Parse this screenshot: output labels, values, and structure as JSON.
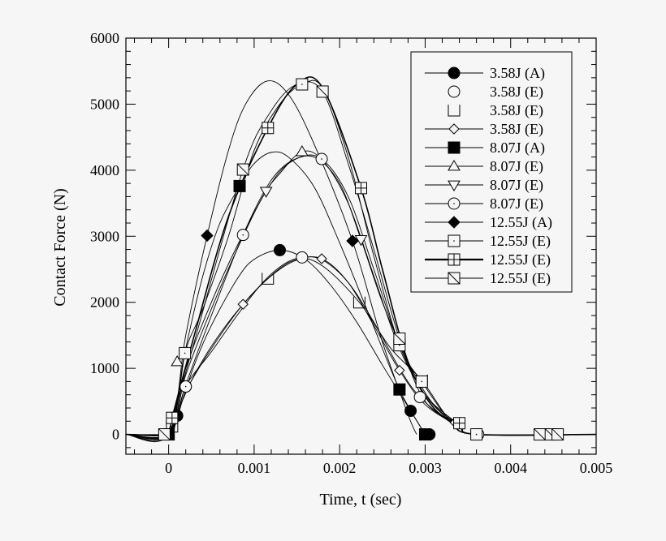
{
  "chart_data": {
    "type": "line",
    "title": "",
    "xlabel": "Time, t (sec)",
    "ylabel": "Contact Force (N)",
    "xlim": [
      -0.0005,
      0.005
    ],
    "ylim": [
      -300,
      6000
    ],
    "xticks": [
      0,
      0.001,
      0.002,
      0.003,
      0.004,
      0.005
    ],
    "xtick_labels": [
      "0",
      "0.001",
      "0.002",
      "0.003",
      "0.004",
      "0.005"
    ],
    "yticks": [
      0,
      1000,
      2000,
      3000,
      4000,
      5000,
      6000
    ],
    "ytick_labels": [
      "0",
      "1000",
      "2000",
      "3000",
      "4000",
      "5000",
      "6000"
    ],
    "grid": false,
    "legend_placement": "top-right",
    "series": [
      {
        "name": "3.58J (A)",
        "marker": "filled-circle",
        "legend_line": true,
        "line_weight": "normal",
        "points": [
          [
            -0.0005,
            0
          ],
          [
            0,
            0
          ],
          [
            0.0001,
            283
          ],
          [
            0.0003,
            1050
          ],
          [
            0.0005,
            1650
          ],
          [
            0.0008,
            2350
          ],
          [
            0.001,
            2650
          ],
          [
            0.0013,
            2790
          ],
          [
            0.0016,
            2650
          ],
          [
            0.0019,
            2250
          ],
          [
            0.0022,
            1700
          ],
          [
            0.0025,
            1050
          ],
          [
            0.00283,
            357
          ],
          [
            0.003,
            0
          ]
        ],
        "markers": [
          [
            0.0001,
            283
          ],
          [
            0.0013,
            2790
          ],
          [
            0.00283,
            357
          ],
          [
            0.003,
            0
          ],
          [
            0.00305,
            0
          ]
        ]
      },
      {
        "name": "3.58J (E)",
        "marker": "open-circle",
        "legend_line": false,
        "line_weight": "normal",
        "points": [
          [
            -0.0005,
            0
          ],
          [
            0,
            0
          ],
          [
            0.0002,
            725
          ],
          [
            0.0005,
            1250
          ],
          [
            0.0008,
            1800
          ],
          [
            0.0011,
            2300
          ],
          [
            0.00135,
            2580
          ],
          [
            0.00156,
            2680
          ],
          [
            0.0018,
            2640
          ],
          [
            0.0021,
            2300
          ],
          [
            0.0024,
            1700
          ],
          [
            0.0027,
            1000
          ],
          [
            0.00294,
            565
          ],
          [
            0.0033,
            180
          ],
          [
            0.0036,
            0
          ],
          [
            0.005,
            0
          ]
        ],
        "markers": [
          [
            0.0002,
            725
          ],
          [
            0.00156,
            2680
          ],
          [
            0.00294,
            565
          ],
          [
            0.00362,
            0
          ]
        ]
      },
      {
        "name": "3.58J (E)",
        "marker": "open-bracket",
        "legend_line": false,
        "line_weight": "normal",
        "points": [
          [
            -0.0005,
            0
          ],
          [
            0,
            0
          ],
          [
            4e-05,
            120
          ],
          [
            0.0003,
            900
          ],
          [
            0.0007,
            1700
          ],
          [
            0.00116,
            2360
          ],
          [
            0.0015,
            2650
          ],
          [
            0.0018,
            2550
          ],
          [
            0.00223,
            2000
          ],
          [
            0.0026,
            1300
          ],
          [
            0.00296,
            820
          ],
          [
            0.0033,
            200
          ],
          [
            0.0036,
            0
          ],
          [
            0.005,
            0
          ]
        ],
        "markers": [
          [
            4e-05,
            120
          ],
          [
            0.00116,
            2360
          ],
          [
            0.00223,
            2000
          ],
          [
            0.00296,
            820
          ]
        ]
      },
      {
        "name": "3.58J (E)",
        "marker": "open-diamond",
        "legend_line": true,
        "line_weight": "normal",
        "points": [
          [
            -0.0005,
            0
          ],
          [
            0,
            0
          ],
          [
            0.0002,
            650
          ],
          [
            0.0005,
            1300
          ],
          [
            0.00087,
            1970
          ],
          [
            0.0012,
            2400
          ],
          [
            0.0015,
            2640
          ],
          [
            0.00179,
            2660
          ],
          [
            0.0021,
            2300
          ],
          [
            0.0024,
            1650
          ],
          [
            0.0027,
            970
          ],
          [
            0.003,
            450
          ],
          [
            0.0034,
            120
          ],
          [
            0.0036,
            0
          ],
          [
            0.005,
            0
          ]
        ],
        "markers": [
          [
            0.00087,
            1970
          ],
          [
            0.00179,
            2660
          ],
          [
            0.0027,
            970
          ],
          [
            0.00335,
            180
          ]
        ]
      },
      {
        "name": "8.07J (A)",
        "marker": "filled-square",
        "legend_line": true,
        "line_weight": "normal",
        "points": [
          [
            -0.0005,
            0
          ],
          [
            0,
            0
          ],
          [
            0.0002,
            1300
          ],
          [
            0.0004,
            2400
          ],
          [
            0.0006,
            3200
          ],
          [
            0.00083,
            3760
          ],
          [
            0.001,
            4100
          ],
          [
            0.0012,
            4270
          ],
          [
            0.0014,
            4200
          ],
          [
            0.0017,
            3750
          ],
          [
            0.002,
            2900
          ],
          [
            0.0023,
            1950
          ],
          [
            0.0027,
            680
          ],
          [
            0.003,
            0
          ]
        ],
        "markers": [
          [
            0,
            0
          ],
          [
            0.00083,
            3760
          ],
          [
            0.0027,
            680
          ],
          [
            0.003,
            0
          ]
        ]
      },
      {
        "name": "8.07J (E)",
        "marker": "open-triangle-up",
        "legend_line": true,
        "line_weight": "normal",
        "points": [
          [
            -0.0005,
            0
          ],
          [
            0,
            0
          ],
          [
            0.0002,
            900
          ],
          [
            0.0005,
            1900
          ],
          [
            0.0008,
            2800
          ],
          [
            0.0011,
            3600
          ],
          [
            0.0013,
            3950
          ],
          [
            0.00156,
            4280
          ],
          [
            0.0018,
            4150
          ],
          [
            0.0021,
            3500
          ],
          [
            0.0024,
            2400
          ],
          [
            0.0027,
            1300
          ],
          [
            0.003,
            600
          ],
          [
            0.0033,
            200
          ],
          [
            0.0036,
            0
          ],
          [
            0.005,
            0
          ]
        ],
        "markers": [
          [
            0.0001,
            1100
          ],
          [
            0.00156,
            4280
          ]
        ]
      },
      {
        "name": "8.07J (E)",
        "marker": "open-triangle-down",
        "legend_line": true,
        "line_weight": "normal",
        "points": [
          [
            -0.0005,
            0
          ],
          [
            0,
            0
          ],
          [
            0.0002,
            1000
          ],
          [
            0.0005,
            2000
          ],
          [
            0.0008,
            2850
          ],
          [
            0.00114,
            3680
          ],
          [
            0.0014,
            4100
          ],
          [
            0.0017,
            4200
          ],
          [
            0.002,
            3800
          ],
          [
            0.00225,
            2950
          ],
          [
            0.0025,
            2000
          ],
          [
            0.0028,
            1100
          ],
          [
            0.0031,
            450
          ],
          [
            0.0034,
            150
          ],
          [
            0.0036,
            0
          ],
          [
            0.005,
            0
          ]
        ],
        "markers": [
          [
            0.00114,
            3680
          ],
          [
            0.00225,
            2950
          ]
        ]
      },
      {
        "name": "8.07J (E)",
        "marker": "dotted-circle",
        "legend_line": true,
        "line_weight": "normal",
        "points": [
          [
            -0.0005,
            0
          ],
          [
            0,
            0
          ],
          [
            0.0002,
            750
          ],
          [
            0.0005,
            1800
          ],
          [
            0.00087,
            3020
          ],
          [
            0.0012,
            3850
          ],
          [
            0.0015,
            4180
          ],
          [
            0.00179,
            4170
          ],
          [
            0.0021,
            3600
          ],
          [
            0.0024,
            2500
          ],
          [
            0.0027,
            1350
          ],
          [
            0.003,
            600
          ],
          [
            0.0034,
            150
          ],
          [
            0.0036,
            0
          ],
          [
            0.005,
            0
          ]
        ],
        "markers": [
          [
            0.0002,
            725
          ],
          [
            0.00087,
            3020
          ],
          [
            0.00179,
            4170
          ]
        ]
      },
      {
        "name": "12.55J (A)",
        "marker": "filled-diamond",
        "legend_line": true,
        "line_weight": "normal",
        "points": [
          [
            -0.0005,
            0
          ],
          [
            0,
            0
          ],
          [
            0.0002,
            1500
          ],
          [
            0.00045,
            3010
          ],
          [
            0.0007,
            4300
          ],
          [
            0.0009,
            5000
          ],
          [
            0.00115,
            5350
          ],
          [
            0.0014,
            5150
          ],
          [
            0.0017,
            4400
          ],
          [
            0.00215,
            2930
          ],
          [
            0.0025,
            1400
          ],
          [
            0.0028,
            300
          ],
          [
            0.0029,
            0
          ]
        ],
        "markers": [
          [
            0.00045,
            3010
          ],
          [
            0.00215,
            2930
          ]
        ]
      },
      {
        "name": "12.55J (E)",
        "marker": "dotted-square",
        "legend_line": true,
        "line_weight": "normal",
        "points": [
          [
            -0.0005,
            0
          ],
          [
            0,
            0
          ],
          [
            0.00019,
            1230
          ],
          [
            0.0004,
            1900
          ],
          [
            0.0007,
            3000
          ],
          [
            0.001,
            4300
          ],
          [
            0.0013,
            5000
          ],
          [
            0.00156,
            5300
          ],
          [
            0.0018,
            5250
          ],
          [
            0.0021,
            4200
          ],
          [
            0.0024,
            2700
          ],
          [
            0.0027,
            1350
          ],
          [
            0.00296,
            800
          ],
          [
            0.0033,
            200
          ],
          [
            0.0036,
            0
          ],
          [
            0.005,
            0
          ]
        ],
        "markers": [
          [
            0.00019,
            1230
          ],
          [
            0.00156,
            5300
          ],
          [
            0.0027,
            1350
          ],
          [
            0.00296,
            800
          ],
          [
            0.0036,
            0
          ]
        ]
      },
      {
        "name": "12.55J (E)",
        "marker": "crossed-square",
        "legend_line": true,
        "line_weight": "bold",
        "points": [
          [
            -0.0005,
            0
          ],
          [
            0,
            0
          ],
          [
            4e-05,
            250
          ],
          [
            0.0003,
            1500
          ],
          [
            0.0007,
            3300
          ],
          [
            0.00116,
            4640
          ],
          [
            0.0015,
            5300
          ],
          [
            0.0018,
            5250
          ],
          [
            0.00225,
            3730
          ],
          [
            0.0025,
            2500
          ],
          [
            0.0028,
            1100
          ],
          [
            0.0031,
            400
          ],
          [
            0.0034,
            150
          ],
          [
            0.0036,
            0
          ],
          [
            0.005,
            0
          ]
        ],
        "markers": [
          [
            4e-05,
            250
          ],
          [
            0.00116,
            4640
          ],
          [
            0.00225,
            3730
          ],
          [
            0.0034,
            170
          ]
        ]
      },
      {
        "name": "12.55J (E)",
        "marker": "diagonal-square",
        "legend_line": true,
        "line_weight": "normal",
        "points": [
          [
            -0.0005,
            0
          ],
          [
            -5e-05,
            0
          ],
          [
            0,
            50
          ],
          [
            0.0003,
            1400
          ],
          [
            0.00087,
            4010
          ],
          [
            0.0012,
            4900
          ],
          [
            0.0015,
            5300
          ],
          [
            0.0018,
            5190
          ],
          [
            0.0021,
            4100
          ],
          [
            0.0024,
            2800
          ],
          [
            0.0027,
            1450
          ],
          [
            0.003,
            500
          ],
          [
            0.0034,
            150
          ],
          [
            0.0036,
            0
          ],
          [
            0.005,
            0
          ]
        ],
        "markers": [
          [
            -5e-05,
            0
          ],
          [
            0.00087,
            4010
          ],
          [
            0.0018,
            5190
          ],
          [
            0.0027,
            1450
          ],
          [
            0.00434,
            0
          ],
          [
            0.00447,
            0
          ],
          [
            0.00455,
            0
          ]
        ]
      }
    ]
  }
}
